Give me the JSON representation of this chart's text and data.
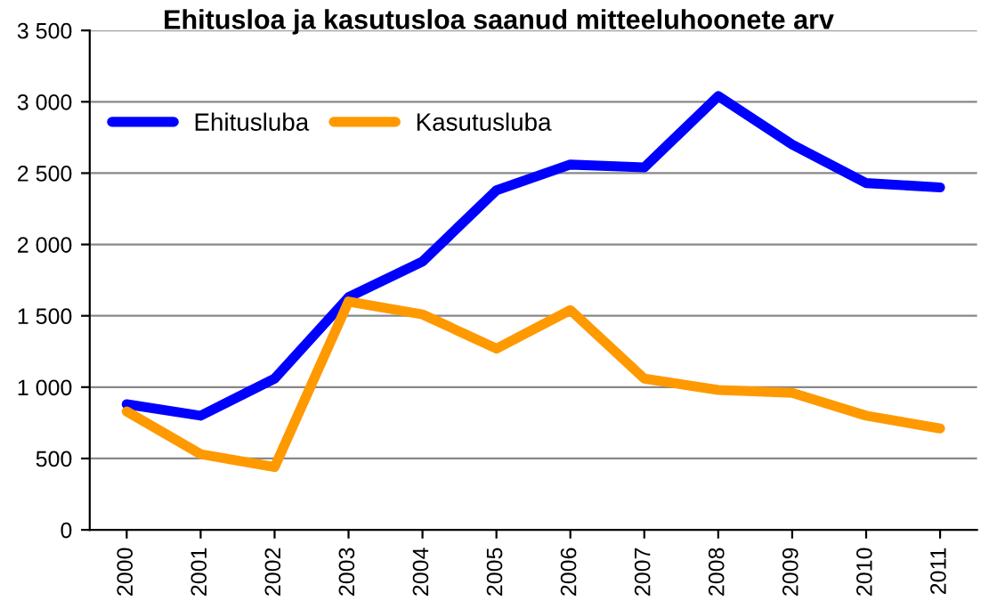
{
  "chart_data": {
    "type": "line",
    "title": "Ehitusloa ja kasutusloa saanud mitteeluhoonete arv",
    "categories": [
      "2000",
      "2001",
      "2002",
      "2003",
      "2004",
      "2005",
      "2006",
      "2007",
      "2008",
      "2009",
      "2010",
      "2011"
    ],
    "series": [
      {
        "name": "Ehitusluba",
        "color": "#0000ff",
        "values": [
          880,
          800,
          1060,
          1630,
          1880,
          2380,
          2560,
          2540,
          3040,
          2700,
          2430,
          2400
        ]
      },
      {
        "name": "Kasutusluba",
        "color": "#ff9900",
        "values": [
          830,
          530,
          440,
          1600,
          1510,
          1270,
          1540,
          1060,
          980,
          960,
          800,
          710
        ]
      }
    ],
    "ylim": [
      0,
      3500
    ],
    "yticks": [
      0,
      {
        "value": 500,
        "label": "500"
      },
      {
        "value": 1000,
        "label": "1 000"
      },
      {
        "value": 1500,
        "label": "1 500"
      },
      {
        "value": 2000,
        "label": "2 000"
      },
      {
        "value": 2500,
        "label": "2 500"
      },
      {
        "value": 3000,
        "label": "3 000"
      },
      {
        "value": 3500,
        "label": "3 500"
      }
    ],
    "grid": "y",
    "legend": "top left",
    "marker": "none",
    "line_style": "solid"
  }
}
